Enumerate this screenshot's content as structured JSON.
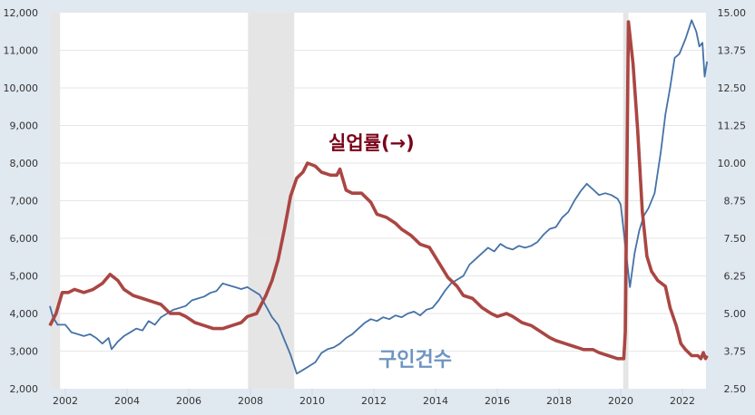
{
  "chart_data": {
    "type": "line",
    "title": "",
    "xlabel": "",
    "x_ticks": [
      "2002",
      "2004",
      "2006",
      "2008",
      "2010",
      "2012",
      "2014",
      "2016",
      "2018",
      "2020",
      "2022"
    ],
    "xlim": [
      2001.5,
      2022.8
    ],
    "left_axis": {
      "label": "",
      "ticks": [
        "2,000",
        "3,000",
        "4,000",
        "5,000",
        "6,000",
        "7,000",
        "8,000",
        "9,000",
        "10,000",
        "11,000",
        "12,000"
      ],
      "ylim": [
        2000,
        12000
      ]
    },
    "right_axis": {
      "label": "",
      "ticks": [
        "2.50",
        "3.75",
        "5.00",
        "6.25",
        "7.50",
        "8.75",
        "10.00",
        "11.25",
        "12.50",
        "13.75",
        "15.00"
      ],
      "ylim": [
        2.5,
        15.0
      ]
    },
    "grid": true,
    "recessions": [
      [
        2001.2,
        2001.83
      ],
      [
        2007.92,
        2009.42
      ],
      [
        2020.08,
        2020.25
      ]
    ],
    "annotations": [
      {
        "text": "실업률(→)",
        "series": "unemployment_rate"
      },
      {
        "text": "구인건수",
        "series": "job_openings"
      }
    ],
    "series": [
      {
        "name": "구인건수",
        "axis": "left",
        "color": "#4572a7",
        "points": [
          [
            2001.5,
            4200
          ],
          [
            2001.6,
            3900
          ],
          [
            2001.75,
            3700
          ],
          [
            2002.0,
            3700
          ],
          [
            2002.2,
            3500
          ],
          [
            2002.4,
            3450
          ],
          [
            2002.6,
            3400
          ],
          [
            2002.8,
            3450
          ],
          [
            2003.0,
            3350
          ],
          [
            2003.2,
            3200
          ],
          [
            2003.4,
            3350
          ],
          [
            2003.5,
            3050
          ],
          [
            2003.7,
            3250
          ],
          [
            2003.9,
            3400
          ],
          [
            2004.1,
            3500
          ],
          [
            2004.3,
            3600
          ],
          [
            2004.5,
            3550
          ],
          [
            2004.7,
            3800
          ],
          [
            2004.9,
            3700
          ],
          [
            2005.1,
            3900
          ],
          [
            2005.3,
            4000
          ],
          [
            2005.5,
            4100
          ],
          [
            2005.7,
            4150
          ],
          [
            2005.9,
            4200
          ],
          [
            2006.1,
            4350
          ],
          [
            2006.3,
            4400
          ],
          [
            2006.5,
            4450
          ],
          [
            2006.7,
            4550
          ],
          [
            2006.9,
            4600
          ],
          [
            2007.1,
            4800
          ],
          [
            2007.3,
            4750
          ],
          [
            2007.5,
            4700
          ],
          [
            2007.7,
            4650
          ],
          [
            2007.9,
            4700
          ],
          [
            2008.1,
            4600
          ],
          [
            2008.3,
            4500
          ],
          [
            2008.5,
            4200
          ],
          [
            2008.7,
            3900
          ],
          [
            2008.9,
            3700
          ],
          [
            2009.1,
            3300
          ],
          [
            2009.3,
            2900
          ],
          [
            2009.5,
            2400
          ],
          [
            2009.7,
            2500
          ],
          [
            2009.9,
            2600
          ],
          [
            2010.1,
            2700
          ],
          [
            2010.3,
            2950
          ],
          [
            2010.5,
            3050
          ],
          [
            2010.7,
            3100
          ],
          [
            2010.9,
            3200
          ],
          [
            2011.1,
            3350
          ],
          [
            2011.3,
            3450
          ],
          [
            2011.5,
            3600
          ],
          [
            2011.7,
            3750
          ],
          [
            2011.9,
            3850
          ],
          [
            2012.1,
            3800
          ],
          [
            2012.3,
            3900
          ],
          [
            2012.5,
            3850
          ],
          [
            2012.7,
            3950
          ],
          [
            2012.9,
            3900
          ],
          [
            2013.1,
            4000
          ],
          [
            2013.3,
            4050
          ],
          [
            2013.5,
            3950
          ],
          [
            2013.7,
            4100
          ],
          [
            2013.9,
            4150
          ],
          [
            2014.1,
            4350
          ],
          [
            2014.3,
            4600
          ],
          [
            2014.5,
            4800
          ],
          [
            2014.7,
            4900
          ],
          [
            2014.9,
            5000
          ],
          [
            2015.1,
            5300
          ],
          [
            2015.3,
            5450
          ],
          [
            2015.5,
            5600
          ],
          [
            2015.7,
            5750
          ],
          [
            2015.9,
            5650
          ],
          [
            2016.1,
            5850
          ],
          [
            2016.3,
            5750
          ],
          [
            2016.5,
            5700
          ],
          [
            2016.7,
            5800
          ],
          [
            2016.9,
            5750
          ],
          [
            2017.1,
            5800
          ],
          [
            2017.3,
            5900
          ],
          [
            2017.5,
            6100
          ],
          [
            2017.7,
            6250
          ],
          [
            2017.9,
            6300
          ],
          [
            2018.1,
            6550
          ],
          [
            2018.3,
            6700
          ],
          [
            2018.5,
            7000
          ],
          [
            2018.7,
            7250
          ],
          [
            2018.9,
            7450
          ],
          [
            2019.1,
            7300
          ],
          [
            2019.3,
            7150
          ],
          [
            2019.5,
            7200
          ],
          [
            2019.7,
            7150
          ],
          [
            2019.9,
            7050
          ],
          [
            2020.0,
            6900
          ],
          [
            2020.15,
            5800
          ],
          [
            2020.3,
            4700
          ],
          [
            2020.45,
            5600
          ],
          [
            2020.6,
            6200
          ],
          [
            2020.75,
            6600
          ],
          [
            2020.9,
            6800
          ],
          [
            2021.1,
            7200
          ],
          [
            2021.3,
            8300
          ],
          [
            2021.45,
            9300
          ],
          [
            2021.6,
            10000
          ],
          [
            2021.75,
            10800
          ],
          [
            2021.9,
            10900
          ],
          [
            2022.1,
            11300
          ],
          [
            2022.3,
            11800
          ],
          [
            2022.45,
            11500
          ],
          [
            2022.55,
            11100
          ],
          [
            2022.65,
            11200
          ],
          [
            2022.72,
            10300
          ],
          [
            2022.8,
            10700
          ]
        ]
      },
      {
        "name": "실업률",
        "axis": "right",
        "color": "#aa4643",
        "points": [
          [
            2001.5,
            4.6
          ],
          [
            2001.7,
            5.0
          ],
          [
            2001.9,
            5.7
          ],
          [
            2002.1,
            5.7
          ],
          [
            2002.3,
            5.8
          ],
          [
            2002.6,
            5.7
          ],
          [
            2002.9,
            5.8
          ],
          [
            2003.2,
            6.0
          ],
          [
            2003.45,
            6.3
          ],
          [
            2003.7,
            6.1
          ],
          [
            2003.9,
            5.8
          ],
          [
            2004.2,
            5.6
          ],
          [
            2004.5,
            5.5
          ],
          [
            2004.8,
            5.4
          ],
          [
            2005.1,
            5.3
          ],
          [
            2005.4,
            5.0
          ],
          [
            2005.7,
            5.0
          ],
          [
            2005.9,
            4.9
          ],
          [
            2006.2,
            4.7
          ],
          [
            2006.5,
            4.6
          ],
          [
            2006.8,
            4.5
          ],
          [
            2007.1,
            4.5
          ],
          [
            2007.4,
            4.6
          ],
          [
            2007.7,
            4.7
          ],
          [
            2007.9,
            4.9
          ],
          [
            2008.2,
            5.0
          ],
          [
            2008.5,
            5.6
          ],
          [
            2008.7,
            6.1
          ],
          [
            2008.9,
            6.8
          ],
          [
            2009.1,
            7.8
          ],
          [
            2009.3,
            8.9
          ],
          [
            2009.5,
            9.5
          ],
          [
            2009.7,
            9.7
          ],
          [
            2009.85,
            10.0
          ],
          [
            2010.1,
            9.9
          ],
          [
            2010.3,
            9.7
          ],
          [
            2010.6,
            9.6
          ],
          [
            2010.8,
            9.6
          ],
          [
            2010.9,
            9.8
          ],
          [
            2011.1,
            9.1
          ],
          [
            2011.3,
            9.0
          ],
          [
            2011.6,
            9.0
          ],
          [
            2011.9,
            8.7
          ],
          [
            2012.1,
            8.3
          ],
          [
            2012.4,
            8.2
          ],
          [
            2012.7,
            8.0
          ],
          [
            2012.9,
            7.8
          ],
          [
            2013.2,
            7.6
          ],
          [
            2013.5,
            7.3
          ],
          [
            2013.8,
            7.2
          ],
          [
            2014.1,
            6.7
          ],
          [
            2014.4,
            6.2
          ],
          [
            2014.7,
            5.9
          ],
          [
            2014.9,
            5.6
          ],
          [
            2015.2,
            5.5
          ],
          [
            2015.5,
            5.2
          ],
          [
            2015.8,
            5.0
          ],
          [
            2016.0,
            4.9
          ],
          [
            2016.3,
            5.0
          ],
          [
            2016.5,
            4.9
          ],
          [
            2016.8,
            4.7
          ],
          [
            2017.1,
            4.6
          ],
          [
            2017.4,
            4.4
          ],
          [
            2017.7,
            4.2
          ],
          [
            2017.9,
            4.1
          ],
          [
            2018.2,
            4.0
          ],
          [
            2018.5,
            3.9
          ],
          [
            2018.8,
            3.8
          ],
          [
            2019.1,
            3.8
          ],
          [
            2019.3,
            3.7
          ],
          [
            2019.6,
            3.6
          ],
          [
            2019.9,
            3.5
          ],
          [
            2020.1,
            3.5
          ],
          [
            2020.15,
            4.4
          ],
          [
            2020.25,
            14.7
          ],
          [
            2020.4,
            13.3
          ],
          [
            2020.55,
            11.1
          ],
          [
            2020.7,
            8.4
          ],
          [
            2020.85,
            6.9
          ],
          [
            2021.0,
            6.4
          ],
          [
            2021.2,
            6.1
          ],
          [
            2021.45,
            5.9
          ],
          [
            2021.6,
            5.2
          ],
          [
            2021.8,
            4.6
          ],
          [
            2021.95,
            4.0
          ],
          [
            2022.1,
            3.8
          ],
          [
            2022.3,
            3.6
          ],
          [
            2022.5,
            3.6
          ],
          [
            2022.6,
            3.5
          ],
          [
            2022.68,
            3.7
          ],
          [
            2022.75,
            3.5
          ],
          [
            2022.8,
            3.6
          ]
        ]
      }
    ]
  }
}
